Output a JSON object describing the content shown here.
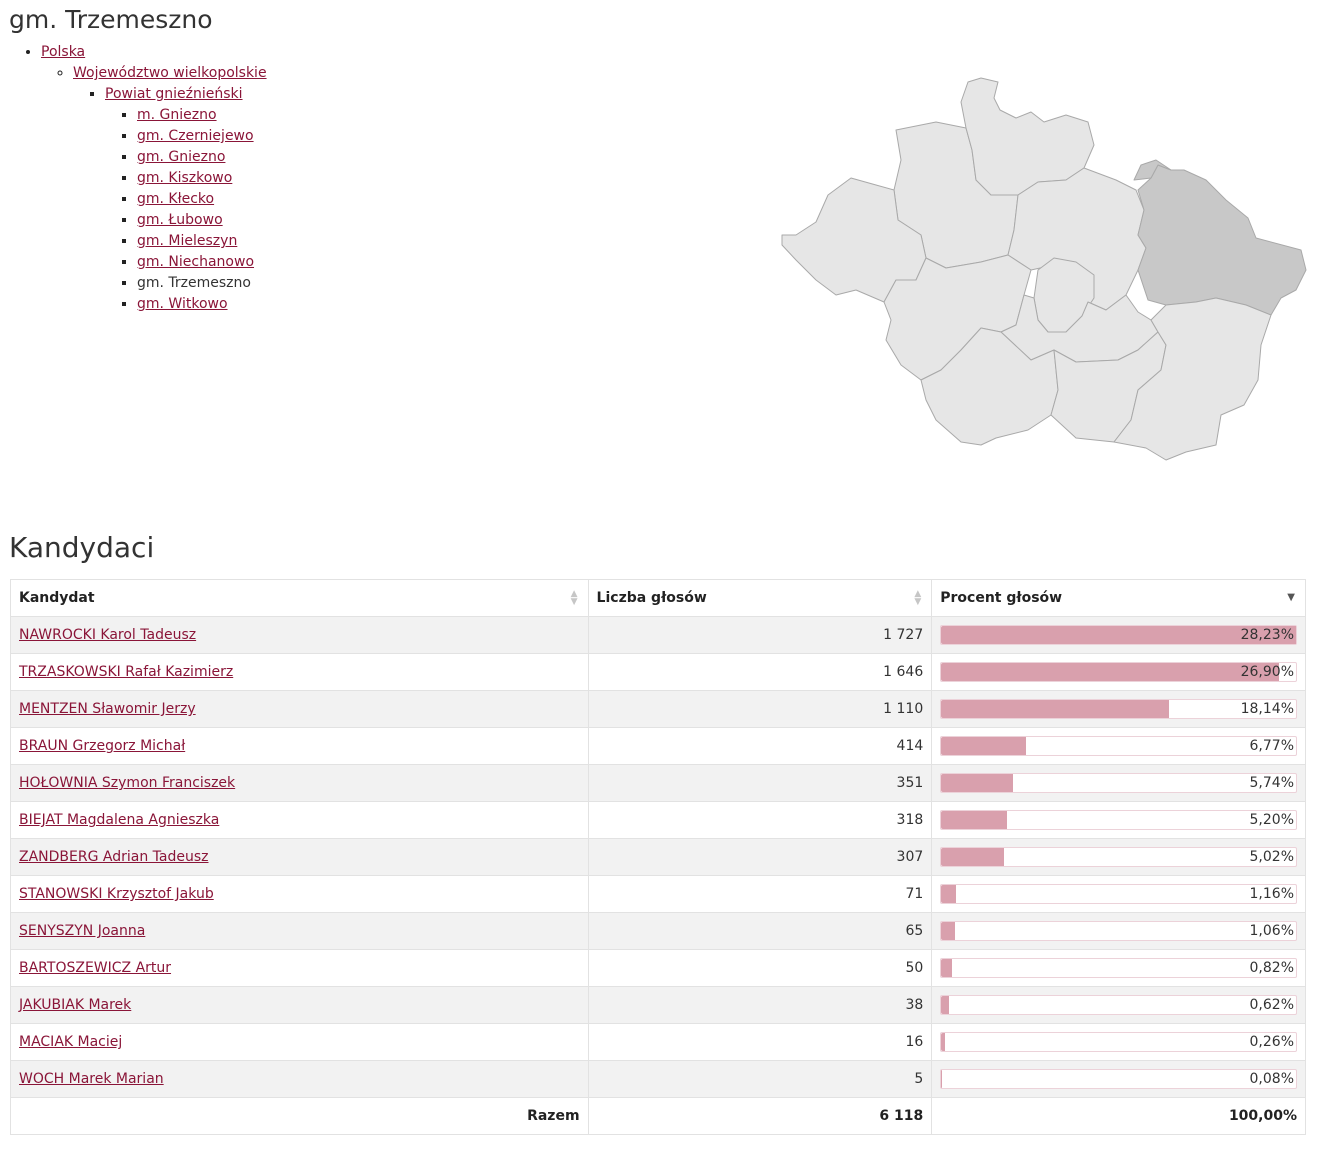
{
  "page": {
    "title": "gm. Trzemeszno"
  },
  "nav": {
    "country": "Polska",
    "voivodeship": "Województwo wielkopolskie",
    "county": "Powiat gnieźnieński",
    "communes": [
      {
        "label": "m. Gniezno",
        "current": false
      },
      {
        "label": "gm. Czerniejewo",
        "current": false
      },
      {
        "label": "gm. Gniezno",
        "current": false
      },
      {
        "label": "gm. Kiszkowo",
        "current": false
      },
      {
        "label": "gm. Kłecko",
        "current": false
      },
      {
        "label": "gm. Łubowo",
        "current": false
      },
      {
        "label": "gm. Mieleszyn",
        "current": false
      },
      {
        "label": "gm. Niechanowo",
        "current": false
      },
      {
        "label": "gm. Trzemeszno",
        "current": true
      },
      {
        "label": "gm. Witkowo",
        "current": false
      }
    ]
  },
  "map": {
    "fill_default": "#e6e6e6",
    "fill_selected": "#c8c8c8",
    "stroke": "#a9a9a9"
  },
  "candidates": {
    "title": "Kandydaci",
    "columns": {
      "name": "Kandydat",
      "votes": "Liczba głosów",
      "percent": "Procent głosów"
    },
    "rows": [
      {
        "name": "NAWROCKI Karol Tadeusz",
        "votes": "1 727",
        "percent": "28,23%",
        "share": 28.23
      },
      {
        "name": "TRZASKOWSKI Rafał Kazimierz",
        "votes": "1 646",
        "percent": "26,90%",
        "share": 26.9
      },
      {
        "name": "MENTZEN Sławomir Jerzy",
        "votes": "1 110",
        "percent": "18,14%",
        "share": 18.14
      },
      {
        "name": "BRAUN Grzegorz Michał",
        "votes": "414",
        "percent": "6,77%",
        "share": 6.77
      },
      {
        "name": "HOŁOWNIA Szymon Franciszek",
        "votes": "351",
        "percent": "5,74%",
        "share": 5.74
      },
      {
        "name": "BIEJAT Magdalena Agnieszka",
        "votes": "318",
        "percent": "5,20%",
        "share": 5.2
      },
      {
        "name": "ZANDBERG Adrian Tadeusz",
        "votes": "307",
        "percent": "5,02%",
        "share": 5.02
      },
      {
        "name": "STANOWSKI Krzysztof Jakub",
        "votes": "71",
        "percent": "1,16%",
        "share": 1.16
      },
      {
        "name": "SENYSZYN Joanna",
        "votes": "65",
        "percent": "1,06%",
        "share": 1.06
      },
      {
        "name": "BARTOSZEWICZ Artur",
        "votes": "50",
        "percent": "0,82%",
        "share": 0.82
      },
      {
        "name": "JAKUBIAK Marek",
        "votes": "38",
        "percent": "0,62%",
        "share": 0.62
      },
      {
        "name": "MACIAK Maciej",
        "votes": "16",
        "percent": "0,26%",
        "share": 0.26
      },
      {
        "name": "WOCH Marek Marian",
        "votes": "5",
        "percent": "0,08%",
        "share": 0.08
      }
    ],
    "total": {
      "label": "Razem",
      "votes": "6 118",
      "percent": "100,00%"
    },
    "bar_color": "#d9a0ad"
  }
}
